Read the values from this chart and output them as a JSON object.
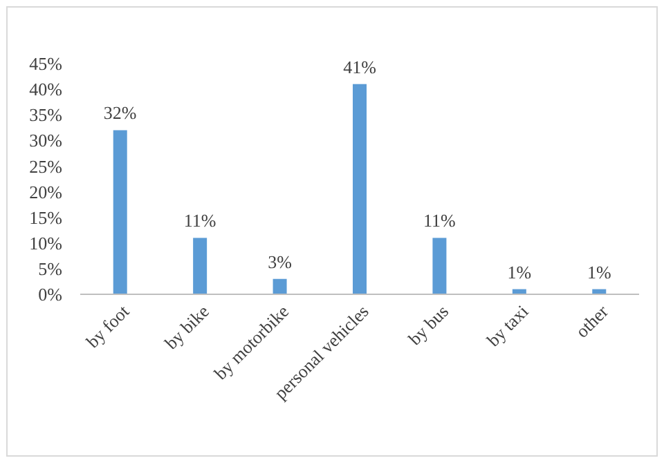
{
  "chart_data": {
    "type": "bar",
    "categories": [
      "by foot",
      "by bike",
      "by motorbike",
      "personal vehicles",
      "by bus",
      "by taxi",
      "other"
    ],
    "values": [
      32,
      11,
      3,
      41,
      11,
      1,
      1
    ],
    "value_labels": [
      "32%",
      "11%",
      "3%",
      "41%",
      "11%",
      "1%",
      "1%"
    ],
    "color": "#5b9bd5",
    "ylim": [
      0,
      45
    ],
    "yticks": [
      {
        "value": 0,
        "label": "0%"
      },
      {
        "value": 5,
        "label": "5%"
      },
      {
        "value": 10,
        "label": "10%"
      },
      {
        "value": 15,
        "label": "15%"
      },
      {
        "value": 20,
        "label": "20%"
      },
      {
        "value": 25,
        "label": "25%"
      },
      {
        "value": 30,
        "label": "30%"
      },
      {
        "value": 35,
        "label": "35%"
      },
      {
        "value": 40,
        "label": "40%"
      },
      {
        "value": 45,
        "label": "45%"
      }
    ],
    "grid": false
  }
}
